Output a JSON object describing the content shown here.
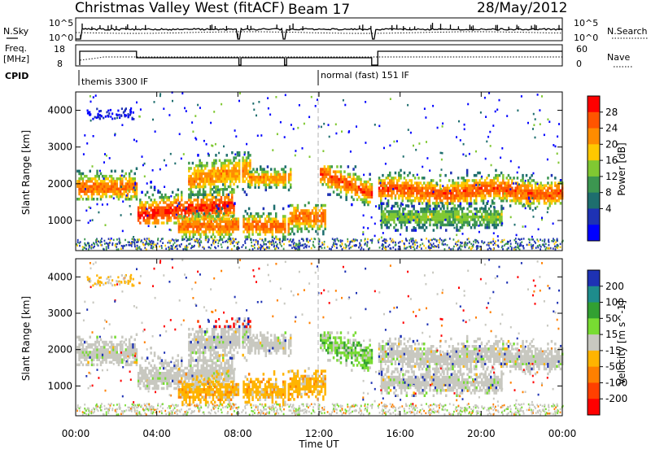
{
  "header": {
    "title": "Christmas Valley West (fitACF)",
    "beam": "Beam 17",
    "date": "28/May/2012"
  },
  "strips": {
    "sky_label": "N.Sky",
    "search_label": "N.Search",
    "sky_ticks": [
      "10^5",
      "10^0"
    ],
    "search_ticks": [
      "10^5",
      "10^0"
    ],
    "freq_label_1": "Freq.",
    "freq_label_2": "[MHz]",
    "freq_ticks": [
      "18",
      "8"
    ],
    "nave_label": "Nave",
    "nave_ticks": [
      "60",
      "0"
    ],
    "cpid_label": "CPID",
    "cpid_segments": [
      {
        "start_hour": 0.0,
        "label": "themis 3300 IF"
      },
      {
        "start_hour": 12.0,
        "label": "normal (fast) 151 IF"
      }
    ]
  },
  "power_panel": {
    "ylabel": "Slant Range [km]",
    "yticks": [
      "4000",
      "3000",
      "2000",
      "1000"
    ],
    "colorbar_label": "Power [dB]",
    "colorbar_ticks": [
      "28",
      "24",
      "20",
      "16",
      "12",
      "8",
      "4"
    ],
    "colors": [
      "#ff0000",
      "#ff5500",
      "#ff8c00",
      "#ffc800",
      "#80c832",
      "#3c9650",
      "#1e6e6e",
      "#1e32b4",
      "#0000ff"
    ]
  },
  "velocity_panel": {
    "ylabel": "Slant Range [km]",
    "yticks": [
      "4000",
      "3000",
      "2000",
      "1000"
    ],
    "colorbar_label": "Velocity [m s^-1]",
    "colorbar_ticks": [
      "200",
      "100",
      "50",
      "15",
      "-15",
      "-50",
      "-100",
      "-200"
    ],
    "colors": [
      "#1e32b4",
      "#1e8c8c",
      "#32a032",
      "#78dc32",
      "#c8c8c0",
      "#ffb400",
      "#ff8000",
      "#ff4000",
      "#ff0000"
    ]
  },
  "xaxis": {
    "ticks": [
      "00:00",
      "04:00",
      "08:00",
      "12:00",
      "16:00",
      "20:00",
      "00:00"
    ],
    "label": "Time UT"
  },
  "chart_data": {
    "type": "heatmap",
    "x_range_hours": [
      0,
      24
    ],
    "y_range_km": [
      180,
      4500
    ],
    "power_db_range": [
      0,
      30
    ],
    "velocity_range": [
      -250,
      250
    ],
    "scatter_regions": [
      {
        "t": [
          0.0,
          3.0
        ],
        "r": [
          1550,
          2450
        ],
        "peak_r": 1900,
        "width_r": 380,
        "peak_db": 24
      },
      {
        "t": [
          3.0,
          7.8
        ],
        "r": [
          900,
          2500
        ],
        "peak_r": 1250,
        "width_r": 420,
        "peak_db": 28
      },
      {
        "t": [
          5.5,
          8.6
        ],
        "r": [
          1600,
          3100
        ],
        "peak_r": 2400,
        "width_r": 450,
        "peak_db": 22
      },
      {
        "t": [
          5.0,
          10.5
        ],
        "r": [
          450,
          1500
        ],
        "peak_r": 850,
        "width_r": 320,
        "peak_db": 25
      },
      {
        "t": [
          8.5,
          10.6
        ],
        "r": [
          1800,
          2500
        ],
        "peak_r": 2150,
        "width_r": 250,
        "peak_db": 22
      },
      {
        "t": [
          10.5,
          12.3
        ],
        "r": [
          600,
          1800
        ],
        "peak_r": 1100,
        "width_r": 380,
        "peak_db": 24
      },
      {
        "t": [
          12.0,
          14.6
        ],
        "r": [
          1400,
          2500
        ],
        "peak_r": 1900,
        "width_r": 350,
        "peak_db": 26
      },
      {
        "t": [
          14.7,
          24.0
        ],
        "r": [
          1300,
          2400
        ],
        "peak_r": 1800,
        "width_r": 360,
        "peak_db": 26
      },
      {
        "t": [
          15.0,
          21.0
        ],
        "r": [
          700,
          1500
        ],
        "peak_r": 1100,
        "width_r": 300,
        "peak_db": 14
      }
    ]
  }
}
